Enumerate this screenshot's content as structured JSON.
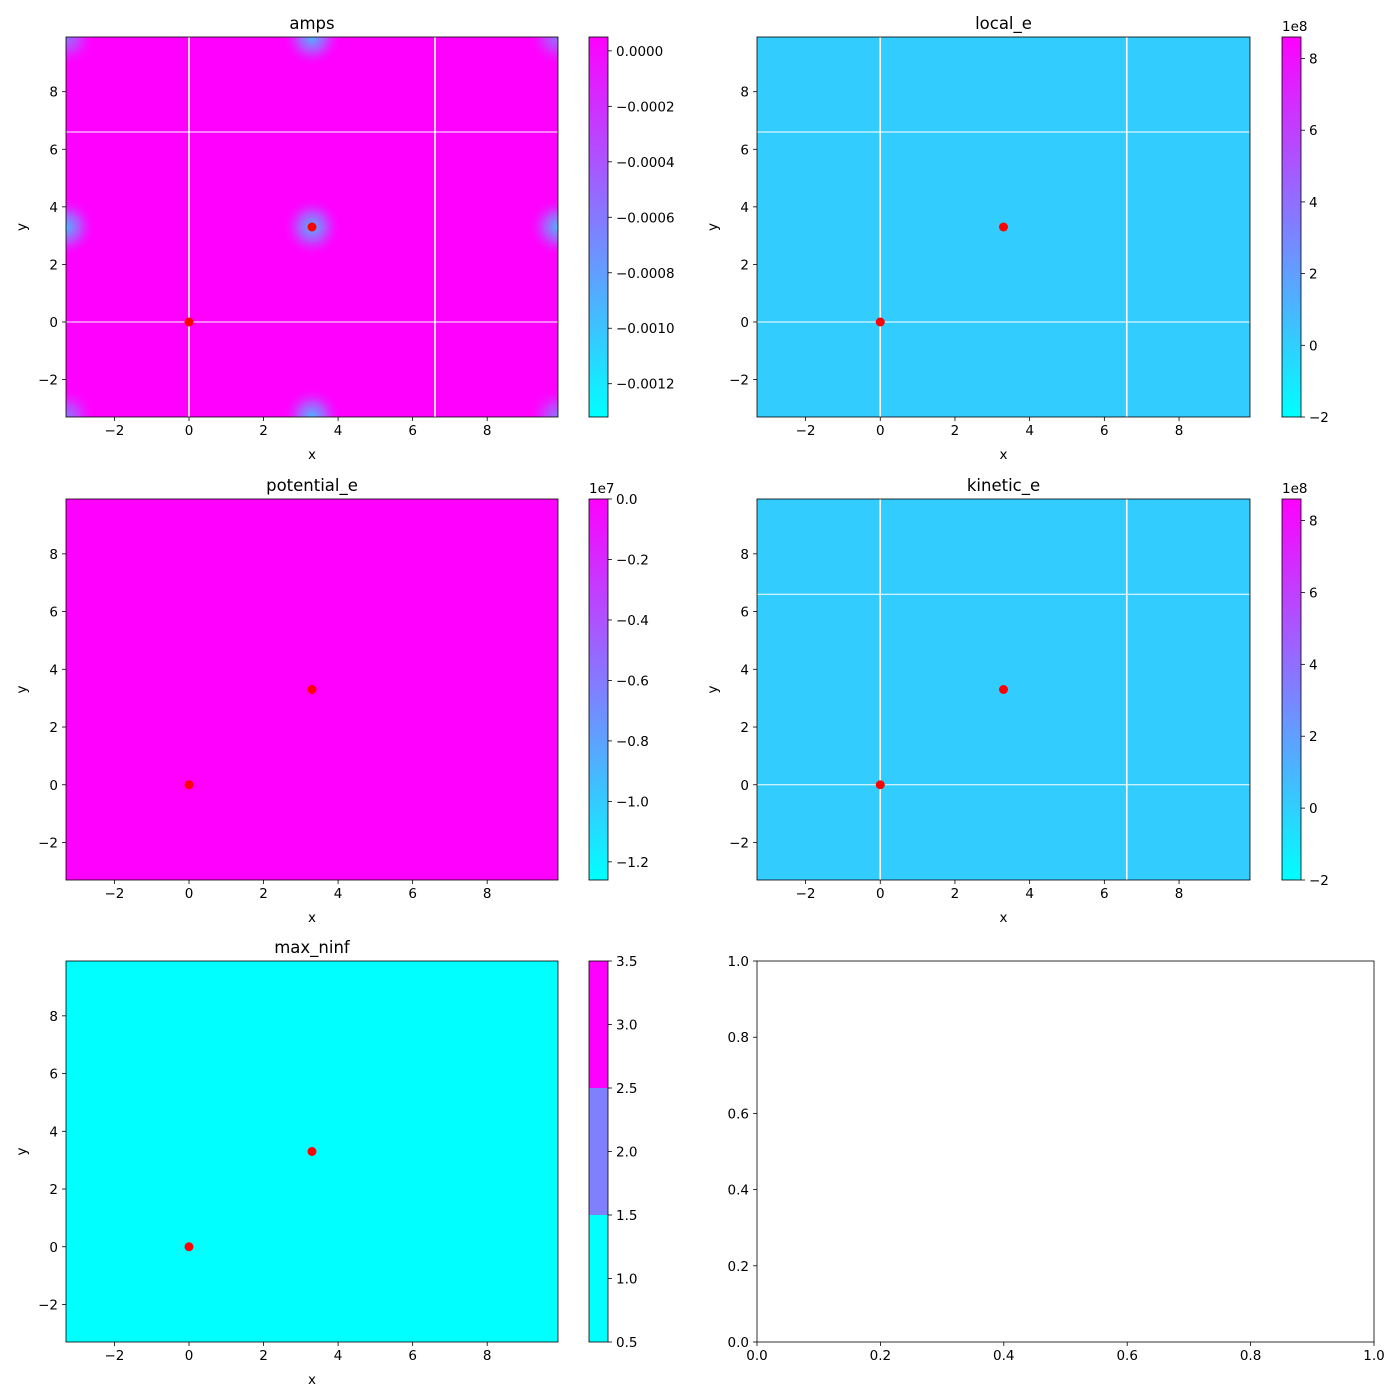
{
  "chart_data": [
    {
      "type": "heatmap",
      "title": "amps",
      "xlabel": "x",
      "ylabel": "y",
      "xlim": [
        -3.3,
        9.9
      ],
      "ylim": [
        -3.3,
        9.9
      ],
      "xticks": [
        -2,
        0,
        2,
        4,
        6,
        8
      ],
      "yticks": [
        -2,
        0,
        2,
        4,
        6,
        8
      ],
      "colormap": "cool",
      "background_color": "#ff00ff",
      "blobs": [
        {
          "x": 3.3,
          "y": 3.3,
          "strength": 0.9
        },
        {
          "x": -3.3,
          "y": 3.3,
          "strength": 0.9
        },
        {
          "x": 9.9,
          "y": 3.3,
          "strength": 0.9
        },
        {
          "x": 3.3,
          "y": 9.9,
          "strength": 0.9
        },
        {
          "x": 3.3,
          "y": -3.3,
          "strength": 0.9
        },
        {
          "x": -3.3,
          "y": 9.9,
          "strength": 0.6
        },
        {
          "x": 9.9,
          "y": 9.9,
          "strength": 0.6
        },
        {
          "x": -3.3,
          "y": -3.3,
          "strength": 0.6
        },
        {
          "x": 9.9,
          "y": -3.3,
          "strength": 0.6
        }
      ],
      "grid_lines": {
        "x": [
          0,
          6.6
        ],
        "y": [
          0,
          6.6
        ]
      },
      "points": [
        {
          "x": 0,
          "y": 0
        },
        {
          "x": 3.3,
          "y": 3.3
        }
      ],
      "point_color": "#ff0000",
      "colorbar": {
        "type": "continuous",
        "range": [
          -0.00132,
          5e-05
        ],
        "ticks": [
          0.0,
          -0.0002,
          -0.0004,
          -0.0006,
          -0.0008,
          -0.001,
          -0.0012
        ],
        "tick_labels": [
          "0.0000",
          "−0.0002",
          "−0.0004",
          "−0.0006",
          "−0.0008",
          "−0.0010",
          "−0.0012"
        ],
        "offset": ""
      }
    },
    {
      "type": "heatmap",
      "title": "local_e",
      "xlabel": "x",
      "ylabel": "y",
      "xlim": [
        -3.3,
        9.9
      ],
      "ylim": [
        -3.3,
        9.9
      ],
      "xticks": [
        -2,
        0,
        2,
        4,
        6,
        8
      ],
      "yticks": [
        -2,
        0,
        2,
        4,
        6,
        8
      ],
      "colormap": "cool",
      "background_color": "#33ccff",
      "blobs": [],
      "grid_lines": {
        "x": [
          0,
          6.6
        ],
        "y": [
          0,
          6.6
        ]
      },
      "points": [
        {
          "x": 0,
          "y": 0
        },
        {
          "x": 3.3,
          "y": 3.3
        }
      ],
      "point_color": "#ff0000",
      "colorbar": {
        "type": "continuous",
        "range": [
          -2.0,
          8.6
        ],
        "ticks": [
          8,
          6,
          4,
          2,
          0,
          -2
        ],
        "tick_labels": [
          "8",
          "6",
          "4",
          "2",
          "0",
          "−2"
        ],
        "offset": "1e8"
      }
    },
    {
      "type": "heatmap",
      "title": "potential_e",
      "xlabel": "x",
      "ylabel": "y",
      "xlim": [
        -3.3,
        9.9
      ],
      "ylim": [
        -3.3,
        9.9
      ],
      "xticks": [
        -2,
        0,
        2,
        4,
        6,
        8
      ],
      "yticks": [
        -2,
        0,
        2,
        4,
        6,
        8
      ],
      "colormap": "cool",
      "background_color": "#ff00ff",
      "blobs": [],
      "grid_lines": {
        "x": [],
        "y": []
      },
      "points": [
        {
          "x": 0,
          "y": 0
        },
        {
          "x": 3.3,
          "y": 3.3
        }
      ],
      "point_color": "#ff0000",
      "colorbar": {
        "type": "continuous",
        "range": [
          -1.26,
          0.0
        ],
        "ticks": [
          0.0,
          -0.2,
          -0.4,
          -0.6,
          -0.8,
          -1.0,
          -1.2
        ],
        "tick_labels": [
          "0.0",
          "−0.2",
          "−0.4",
          "−0.6",
          "−0.8",
          "−1.0",
          "−1.2"
        ],
        "offset": "1e7"
      }
    },
    {
      "type": "heatmap",
      "title": "kinetic_e",
      "xlabel": "x",
      "ylabel": "y",
      "xlim": [
        -3.3,
        9.9
      ],
      "ylim": [
        -3.3,
        9.9
      ],
      "xticks": [
        -2,
        0,
        2,
        4,
        6,
        8
      ],
      "yticks": [
        -2,
        0,
        2,
        4,
        6,
        8
      ],
      "colormap": "cool",
      "background_color": "#33ccff",
      "blobs": [],
      "grid_lines": {
        "x": [
          0,
          6.6
        ],
        "y": [
          0,
          6.6
        ]
      },
      "points": [
        {
          "x": 0,
          "y": 0
        },
        {
          "x": 3.3,
          "y": 3.3
        }
      ],
      "point_color": "#ff0000",
      "colorbar": {
        "type": "continuous",
        "range": [
          -2.0,
          8.6
        ],
        "ticks": [
          8,
          6,
          4,
          2,
          0,
          -2
        ],
        "tick_labels": [
          "8",
          "6",
          "4",
          "2",
          "0",
          "−2"
        ],
        "offset": "1e8"
      }
    },
    {
      "type": "heatmap",
      "title": "max_ninf",
      "xlabel": "x",
      "ylabel": "y",
      "xlim": [
        -3.3,
        9.9
      ],
      "ylim": [
        -3.3,
        9.9
      ],
      "xticks": [
        -2,
        0,
        2,
        4,
        6,
        8
      ],
      "yticks": [
        -2,
        0,
        2,
        4,
        6,
        8
      ],
      "colormap": "cool",
      "background_color": "#00ffff",
      "blobs": [],
      "grid_lines": {
        "x": [],
        "y": []
      },
      "points": [
        {
          "x": 0,
          "y": 0
        },
        {
          "x": 3.3,
          "y": 3.3
        }
      ],
      "point_color": "#ff0000",
      "colorbar": {
        "type": "discrete",
        "range": [
          0.5,
          3.5
        ],
        "bins": [
          {
            "from": 0.5,
            "to": 1.5,
            "color": "#00ffff"
          },
          {
            "from": 1.5,
            "to": 2.5,
            "color": "#8080ff"
          },
          {
            "from": 2.5,
            "to": 3.5,
            "color": "#ff00ff"
          }
        ],
        "ticks": [
          3.5,
          3.0,
          2.5,
          2.0,
          1.5,
          1.0,
          0.5
        ],
        "tick_labels": [
          "3.5",
          "3.0",
          "2.5",
          "2.0",
          "1.5",
          "1.0",
          "0.5"
        ],
        "offset": ""
      }
    },
    {
      "type": "empty",
      "title": "",
      "xlim": [
        0.0,
        1.0
      ],
      "ylim": [
        0.0,
        1.0
      ],
      "xticks": [
        0.0,
        0.2,
        0.4,
        0.6,
        0.8,
        1.0
      ],
      "yticks": [
        0.0,
        0.2,
        0.4,
        0.6,
        0.8,
        1.0
      ],
      "xtick_labels": [
        "0.0",
        "0.2",
        "0.4",
        "0.6",
        "0.8",
        "1.0"
      ],
      "ytick_labels": [
        "0.0",
        "0.2",
        "0.4",
        "0.6",
        "0.8",
        "1.0"
      ]
    }
  ]
}
